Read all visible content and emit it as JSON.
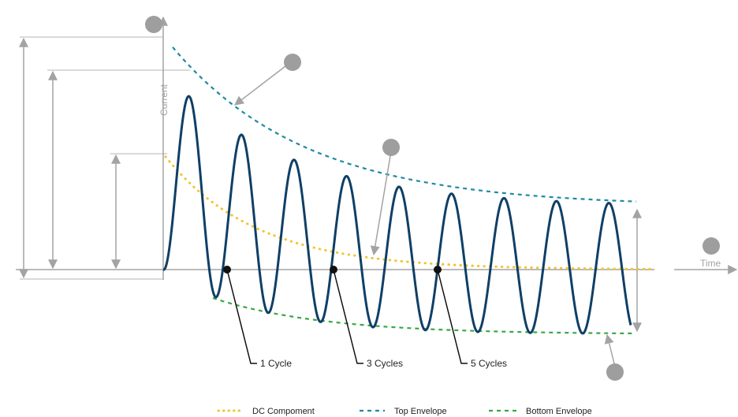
{
  "axes": {
    "y_label": "Current",
    "x_label": "Time"
  },
  "cycle_markers": [
    {
      "label": "1 Cycle",
      "cycle": 1
    },
    {
      "label": "3 Cycles",
      "cycle": 3
    },
    {
      "label": "5 Cycles",
      "cycle": 5
    }
  ],
  "legend": [
    {
      "label": "DC Compoment",
      "color": "#f2c531",
      "style": "dotted"
    },
    {
      "label": "Top Envelope",
      "color": "#1e8aa3",
      "style": "dashed"
    },
    {
      "label": "Bottom Envelope",
      "color": "#3aa846",
      "style": "dashed"
    }
  ],
  "colors": {
    "waveform": "#0f3f66",
    "dc_component": "#f2c531",
    "top_envelope": "#1e8aa3",
    "bottom_envelope": "#3aa846",
    "guides": "#a3a3a3",
    "markers": "#9e9e9e",
    "dot": "#111111"
  },
  "callouts": [
    {
      "icon": "callout-marker-icon",
      "target": "current-axis"
    },
    {
      "icon": "callout-marker-icon",
      "target": "top-envelope"
    },
    {
      "icon": "callout-marker-icon",
      "target": "dc-component"
    },
    {
      "icon": "callout-marker-icon",
      "target": "time-axis"
    },
    {
      "icon": "callout-marker-icon",
      "target": "bottom-envelope"
    }
  ]
}
